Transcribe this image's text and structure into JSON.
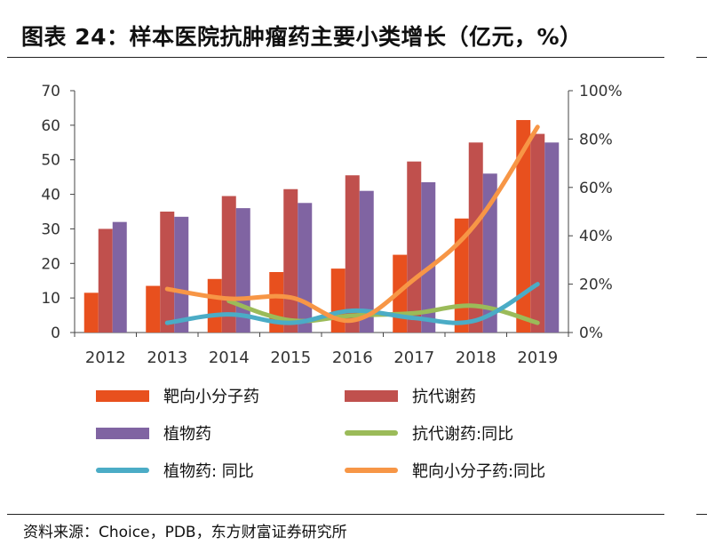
{
  "title": "图表 24：样本医院抗肿瘤药主要小类增长（亿元，%）",
  "source": "资料来源：Choice，PDB，东方财富证券研究所",
  "chart_data": {
    "type": "bar",
    "categories": [
      "2012",
      "2013",
      "2014",
      "2015",
      "2016",
      "2017",
      "2018",
      "2019"
    ],
    "y_left": {
      "ylim": [
        0,
        70
      ],
      "ticks": [
        "0",
        "10",
        "20",
        "30",
        "40",
        "50",
        "60",
        "70"
      ]
    },
    "y_right": {
      "ylim": [
        0,
        100
      ],
      "ticks": [
        "0%",
        "20%",
        "40%",
        "60%",
        "80%",
        "100%"
      ]
    },
    "series": [
      {
        "name": "靶向小分子药",
        "type": "bar",
        "axis": "left",
        "color": "#E8501E",
        "values": [
          11.5,
          13.5,
          15.5,
          17.5,
          18.5,
          22.5,
          33,
          61.5
        ]
      },
      {
        "name": "抗代谢药",
        "type": "bar",
        "axis": "left",
        "color": "#C0504D",
        "values": [
          30,
          35,
          39.5,
          41.5,
          45.5,
          49.5,
          55,
          57.5
        ]
      },
      {
        "name": "植物药",
        "type": "bar",
        "axis": "left",
        "color": "#8064A2",
        "values": [
          32,
          33.5,
          36,
          37.5,
          41,
          43.5,
          46,
          55
        ]
      },
      {
        "name": "抗代谢药:同比",
        "type": "line",
        "axis": "right",
        "color": "#9BBB59",
        "values": [
          null,
          null,
          13,
          5,
          7,
          8,
          11,
          4
        ]
      },
      {
        "name": "植物药: 同比",
        "type": "line",
        "axis": "right",
        "color": "#4BACC6",
        "values": [
          null,
          4,
          7.5,
          4,
          9,
          6,
          5,
          20
        ]
      },
      {
        "name": "靶向小分子药:同比",
        "type": "line",
        "axis": "right",
        "color": "#F79646",
        "values": [
          null,
          18,
          14,
          14.5,
          5,
          22,
          45,
          85
        ]
      }
    ],
    "legend": [
      {
        "label": "靶向小分子药",
        "kind": "bar",
        "color": "#E8501E"
      },
      {
        "label": "抗代谢药",
        "kind": "bar",
        "color": "#C0504D"
      },
      {
        "label": "植物药",
        "kind": "bar",
        "color": "#8064A2"
      },
      {
        "label": "抗代谢药:同比",
        "kind": "line",
        "color": "#9BBB59"
      },
      {
        "label": "植物药: 同比",
        "kind": "line",
        "color": "#4BACC6"
      },
      {
        "label": "靶向小分子药:同比",
        "kind": "line",
        "color": "#F79646"
      }
    ],
    "legend_position": "bottom",
    "grid": false
  }
}
